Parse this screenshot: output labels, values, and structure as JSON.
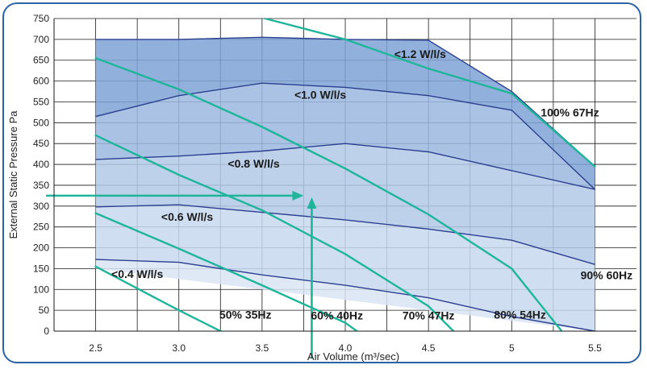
{
  "chart_data": {
    "type": "line",
    "xlabel": "Air Volume (m³/sec)",
    "ylabel": "External Static Pressure Pa",
    "xlim": [
      2.25,
      5.75
    ],
    "ylim": [
      0,
      750
    ],
    "x_ticks": [
      "2.5",
      "3.0",
      "3.5",
      "4.0",
      "4.5",
      "5",
      "5.5"
    ],
    "x_tick_values": [
      2.5,
      3.0,
      3.5,
      4.0,
      4.5,
      5.0,
      5.5
    ],
    "y_ticks": [
      0,
      50,
      100,
      150,
      200,
      250,
      300,
      350,
      400,
      450,
      500,
      550,
      600,
      650,
      700,
      750
    ],
    "grid": true,
    "envelope": {
      "top": [
        [
          2.5,
          660
        ],
        [
          3.0,
          702
        ],
        [
          3.5,
          706
        ],
        [
          4.0,
          703
        ],
        [
          4.5,
          700
        ],
        [
          5.0,
          570
        ],
        [
          5.5,
          395
        ]
      ],
      "bottom": [
        [
          2.5,
          150
        ],
        [
          5.5,
          0
        ]
      ]
    },
    "speed_curves": [
      {
        "label": "100% 67Hz",
        "points": [
          [
            2.5,
            700
          ],
          [
            3.0,
            700
          ],
          [
            3.5,
            705
          ],
          [
            4.0,
            700
          ],
          [
            4.5,
            698
          ],
          [
            5.0,
            575
          ],
          [
            5.5,
            395
          ]
        ]
      },
      {
        "label": "90% 60Hz",
        "points": [
          [
            2.5,
            515
          ],
          [
            3.0,
            565
          ],
          [
            3.5,
            595
          ],
          [
            4.0,
            585
          ],
          [
            4.5,
            565
          ],
          [
            5.0,
            530
          ],
          [
            5.5,
            340
          ]
        ]
      },
      {
        "label": "80% 54Hz",
        "points": [
          [
            2.5,
            412
          ],
          [
            3.0,
            420
          ],
          [
            3.5,
            432
          ],
          [
            4.0,
            450
          ],
          [
            4.5,
            430
          ],
          [
            5.0,
            385
          ],
          [
            5.5,
            340
          ]
        ]
      },
      {
        "label": "70% 47Hz",
        "points": [
          [
            2.5,
            298
          ],
          [
            3.0,
            303
          ],
          [
            3.5,
            285
          ],
          [
            4.0,
            267
          ],
          [
            4.5,
            245
          ],
          [
            5.0,
            218
          ],
          [
            5.5,
            160
          ]
        ]
      },
      {
        "label": "60% 40Hz",
        "points": [
          [
            2.5,
            172
          ],
          [
            3.0,
            165
          ],
          [
            3.5,
            135
          ],
          [
            4.0,
            110
          ],
          [
            4.5,
            80
          ],
          [
            5.0,
            35
          ],
          [
            5.5,
            0
          ]
        ]
      },
      {
        "label": "50% 35Hz",
        "points": []
      }
    ],
    "sfp_lines": [
      {
        "label": "<1.2 W/l/s",
        "points": [
          [
            3.5,
            752
          ],
          [
            4.0,
            700
          ],
          [
            4.5,
            630
          ],
          [
            5.0,
            570
          ],
          [
            5.5,
            395
          ]
        ]
      },
      {
        "label": "<1.0 W/l/s",
        "points": [
          [
            2.5,
            655
          ],
          [
            3.0,
            580
          ],
          [
            3.5,
            490
          ],
          [
            4.0,
            390
          ],
          [
            4.5,
            280
          ],
          [
            5.0,
            150
          ],
          [
            5.3,
            0
          ]
        ]
      },
      {
        "label": "<0.8 W/l/s",
        "points": [
          [
            2.5,
            470
          ],
          [
            3.0,
            375
          ],
          [
            3.5,
            290
          ],
          [
            4.0,
            185
          ],
          [
            4.5,
            60
          ],
          [
            4.65,
            0
          ]
        ]
      },
      {
        "label": "<0.6 W/l/s",
        "points": [
          [
            2.5,
            283
          ],
          [
            3.0,
            198
          ],
          [
            3.5,
            110
          ],
          [
            4.0,
            20
          ],
          [
            4.07,
            0
          ]
        ]
      },
      {
        "label": "<0.4 W/l/s",
        "points": [
          [
            2.5,
            155
          ],
          [
            3.0,
            50
          ],
          [
            3.25,
            0
          ]
        ]
      }
    ],
    "operating_point": {
      "x": 3.75,
      "y": 325
    },
    "band_label_positions": {
      "<1.2 W/l/s": [
        4.45,
        655
      ],
      "<1.0 W/l/s": [
        3.85,
        558
      ],
      "<0.8 W/l/s": [
        3.45,
        392
      ],
      "<0.6 W/l/s": [
        3.05,
        265
      ],
      "<0.4 W/l/s": [
        2.75,
        128
      ]
    },
    "speed_label_positions": {
      "100% 67Hz": [
        5.35,
        515
      ],
      "90% 60Hz": [
        5.57,
        125
      ],
      "80% 54Hz": [
        5.05,
        30
      ],
      "70% 47Hz": [
        4.5,
        28
      ],
      "60% 40Hz": [
        3.95,
        28
      ],
      "50% 35Hz": [
        3.4,
        30
      ]
    }
  }
}
